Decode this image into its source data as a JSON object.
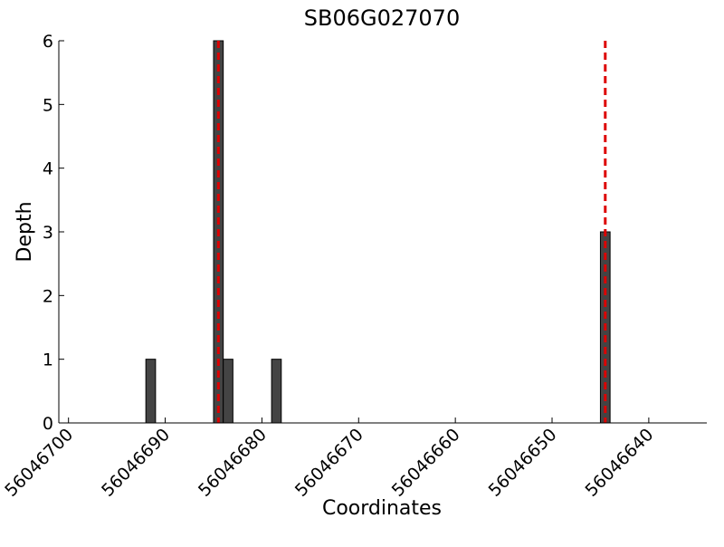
{
  "chart_data": {
    "type": "bar",
    "title": "SB06G027070",
    "xlabel": "Coordinates",
    "ylabel": "Depth",
    "x": [
      56046692,
      56046685,
      56046684,
      56046679,
      56046645
    ],
    "values": [
      1,
      6,
      1,
      1,
      3
    ],
    "color": "#444444",
    "edgecolor": "#000000",
    "xlim": [
      56046701,
      56046634
    ],
    "xticks": [
      56046700,
      56046690,
      56046680,
      56046670,
      56046660,
      56046650,
      56046640
    ],
    "ylim": [
      0,
      6
    ],
    "yticks": [
      0,
      1,
      2,
      3,
      4,
      5,
      6
    ],
    "vlines": [
      56046684.5,
      56046644.5
    ],
    "vline_color": "#dd0000"
  }
}
